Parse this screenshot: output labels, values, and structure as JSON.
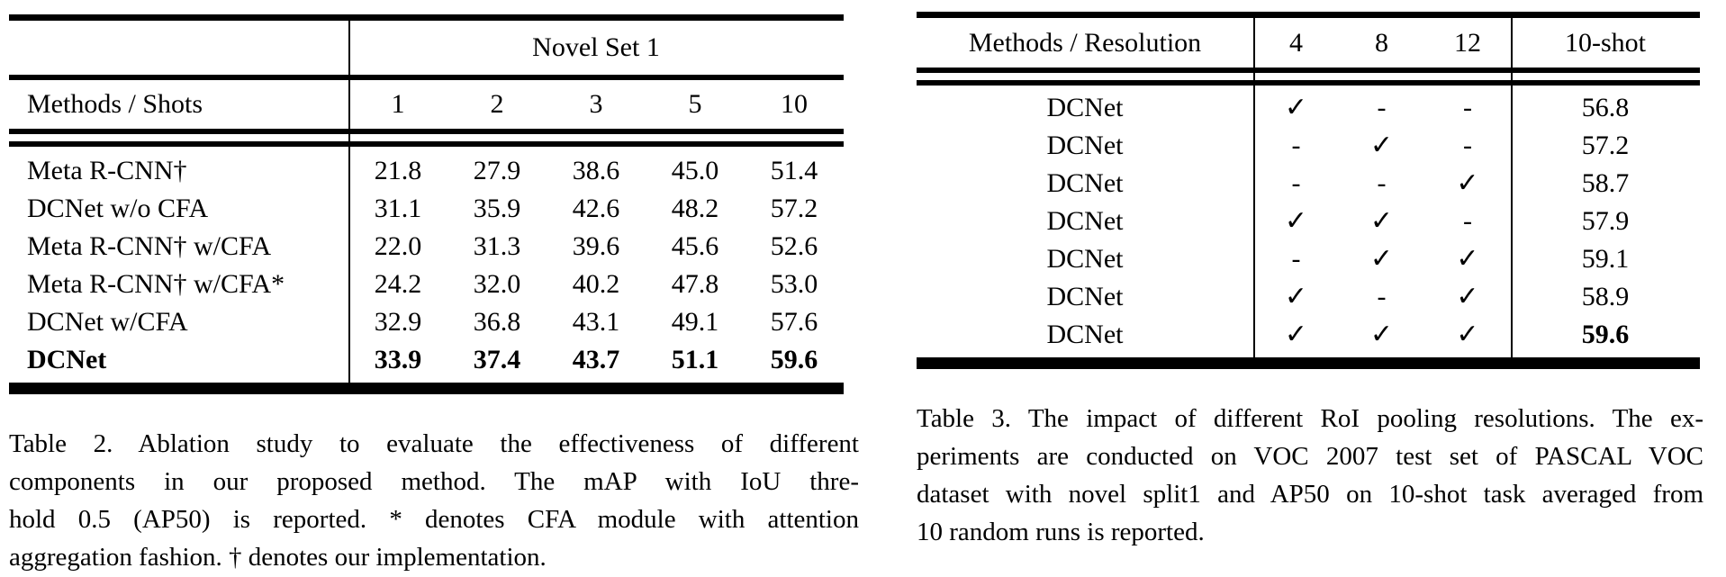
{
  "page": {
    "background": "#ffffff",
    "text_color": "#000000",
    "rule_color": "#000000"
  },
  "table2": {
    "span_header": "Novel Set 1",
    "header": {
      "method_col": "Methods / Shots",
      "shot_cols": [
        "1",
        "2",
        "3",
        "5",
        "10"
      ]
    },
    "rows": [
      {
        "method": "Meta R-CNN†",
        "values": [
          "21.8",
          "27.9",
          "38.6",
          "45.0",
          "51.4"
        ]
      },
      {
        "method": "DCNet w/o CFA",
        "values": [
          "31.1",
          "35.9",
          "42.6",
          "48.2",
          "57.2"
        ]
      },
      {
        "method": "Meta R-CNN† w/CFA",
        "values": [
          "22.0",
          "31.3",
          "39.6",
          "45.6",
          "52.6"
        ]
      },
      {
        "method": "Meta R-CNN† w/CFA*",
        "values": [
          "24.2",
          "32.0",
          "40.2",
          "47.8",
          "53.0"
        ]
      },
      {
        "method": "DCNet w/CFA",
        "values": [
          "32.9",
          "36.8",
          "43.1",
          "49.1",
          "57.6"
        ]
      },
      {
        "method": "DCNet",
        "values": [
          "33.9",
          "37.4",
          "43.7",
          "51.1",
          "59.6"
        ]
      }
    ],
    "caption_lines": [
      "Table 2. Ablation study to evaluate the effectiveness of different",
      "components in our proposed method.  The mAP with IoU thre-",
      "hold 0.5 (AP50) is reported. * denotes CFA module with attention",
      "aggregation fashion. † denotes our implementation."
    ]
  },
  "table3": {
    "header": {
      "method_col": "Methods / Resolution",
      "res_cols": [
        "4",
        "8",
        "12"
      ],
      "shot_col": "10-shot"
    },
    "rows": [
      {
        "method": "DCNet",
        "res": [
          "✓",
          "-",
          "-"
        ],
        "score": "56.8"
      },
      {
        "method": "DCNet",
        "res": [
          "-",
          "✓",
          "-"
        ],
        "score": "57.2"
      },
      {
        "method": "DCNet",
        "res": [
          "-",
          "-",
          "✓"
        ],
        "score": "58.7"
      },
      {
        "method": "DCNet",
        "res": [
          "✓",
          "✓",
          "-"
        ],
        "score": "57.9"
      },
      {
        "method": "DCNet",
        "res": [
          "-",
          "✓",
          "✓"
        ],
        "score": "59.1"
      },
      {
        "method": "DCNet",
        "res": [
          "✓",
          "-",
          "✓"
        ],
        "score": "58.9"
      },
      {
        "method": "DCNet",
        "res": [
          "✓",
          "✓",
          "✓"
        ],
        "score": "59.6"
      }
    ],
    "caption_lines": [
      "Table 3. The impact of different RoI pooling resolutions.  The ex-",
      "periments are conducted on VOC 2007 test set of PASCAL VOC",
      "dataset with novel split1 and AP50 on 10-shot task averaged from",
      "10 random runs is reported."
    ]
  }
}
